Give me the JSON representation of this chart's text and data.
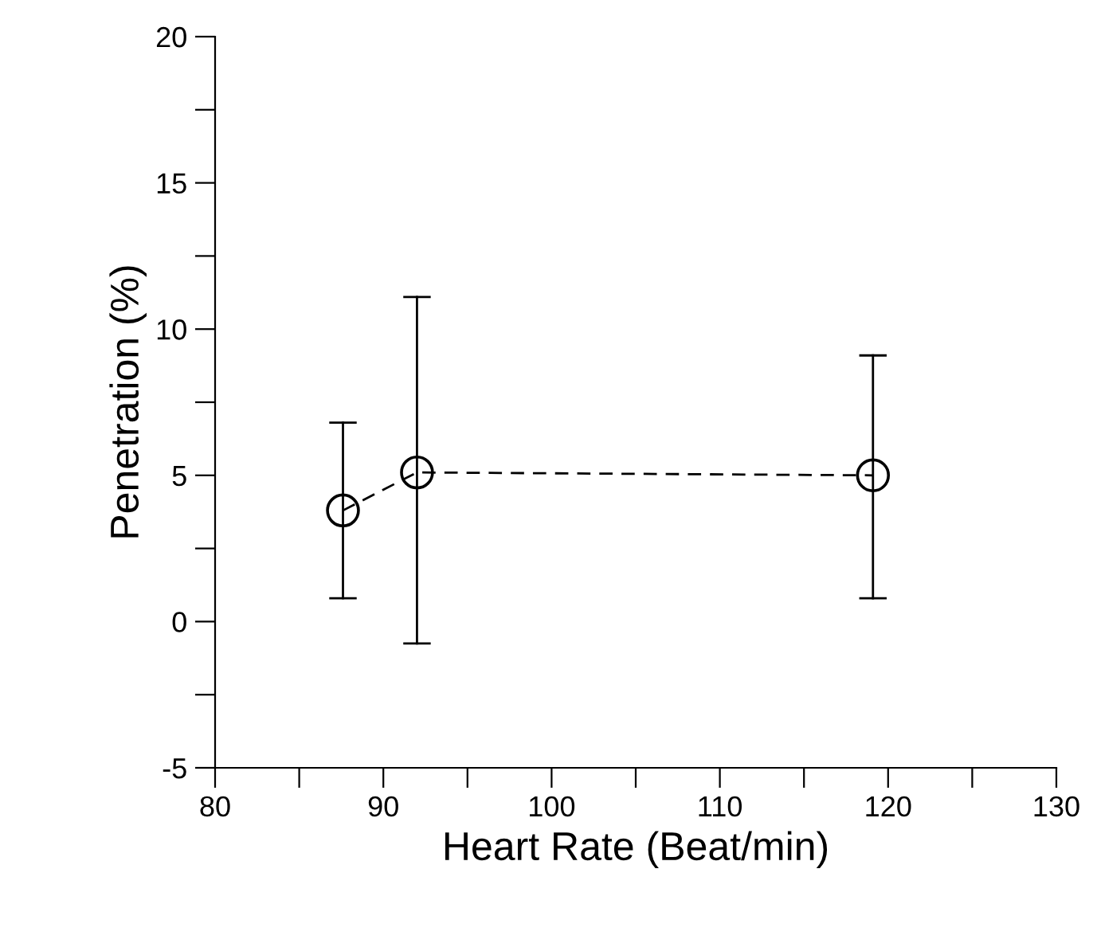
{
  "chart_data": {
    "type": "line",
    "xlabel": "Heart Rate (Beat/min)",
    "ylabel": "Penetration (%)",
    "x": [
      87.6,
      92.0,
      119.1
    ],
    "series": [
      {
        "color": "#000000",
        "values": [
          3.8,
          5.1,
          5.0
        ],
        "errors": [
          [
            0.8,
            6.8
          ],
          [
            -0.75,
            11.1
          ],
          [
            0.8,
            9.1
          ]
        ]
      }
    ],
    "marker": "circle",
    "line_style": "dashed",
    "grid": false,
    "legend": false,
    "xlim": [
      80,
      130
    ],
    "xticks": [
      80,
      {
        "value": 85,
        "label": null
      },
      90,
      {
        "value": 95,
        "label": null
      },
      100,
      {
        "value": 105,
        "label": null
      },
      110,
      {
        "value": 115,
        "label": null
      },
      120,
      {
        "value": 125,
        "label": null
      },
      130
    ],
    "ylim": [
      -5,
      20
    ],
    "yticks": [
      {
        "value": -5,
        "label": "-5"
      },
      {
        "value": -2.5,
        "label": null
      },
      0,
      {
        "value": 2.5,
        "label": null
      },
      5,
      {
        "value": 7.5,
        "label": null
      },
      10,
      {
        "value": 12.5,
        "label": null
      },
      15,
      {
        "value": 17.5,
        "label": null
      },
      20
    ]
  }
}
